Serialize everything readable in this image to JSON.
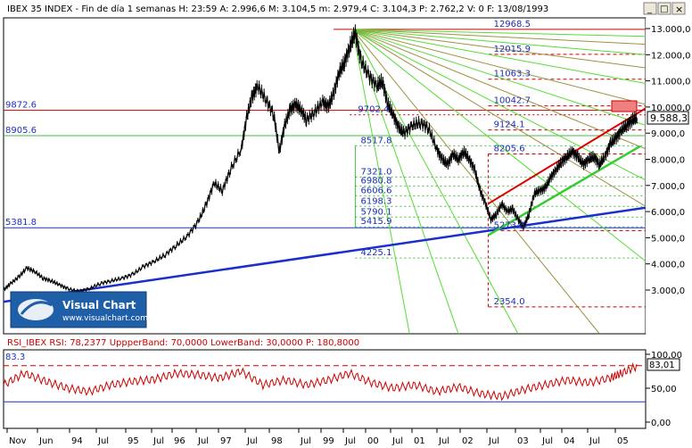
{
  "header": {
    "title": "IBEX 35 INDEX - Fin de día 1 semanas H: 23:59  A: 2.996,6  M: 3.104,5  m: 2.979,4  C: 3.104,3  P: 2.762,2  V: 0  F: 13/08/1993"
  },
  "window_controls": {
    "minimize": "_",
    "maximize": "□",
    "close": "×"
  },
  "logo": {
    "name": "Visual Chart",
    "url": "www.visualchart.com"
  },
  "colors": {
    "price": "#000000",
    "rsi": "#cc0000",
    "support_trend": "#1a2fcc",
    "channel_top": "#e00000",
    "channel_bottom": "#33cc33",
    "fan_green": "#55dd33",
    "fan_olive": "#a09040",
    "hline_red": "#cc0000",
    "hline_green": "#44bb44",
    "hline_blue": "#2030c0"
  },
  "chart_data": [
    {
      "type": "line",
      "title": "IBEX 35 INDEX",
      "x_ticks": [
        "Nov",
        "Jun",
        "94",
        "Jul",
        "95",
        "Jul",
        "96",
        "Jul",
        "97",
        "Jul",
        "98",
        "Jul",
        "99",
        "Jul",
        "00",
        "Jul",
        "01",
        "Jul",
        "02",
        "Jul",
        "03",
        "Jul",
        "04",
        "Jul",
        "05"
      ],
      "y_ticks": [
        "3.000,0",
        "4.000,0",
        "5.000,0",
        "6.000,0",
        "7.000,0",
        "8.000,0",
        "9.000,0",
        "10.000,0",
        "11.000,0",
        "12.000,0",
        "13.000,0"
      ],
      "ylim": [
        2000,
        13400
      ],
      "last_price_label": "9.588,3",
      "last_price": 9588.3,
      "series": [
        {
          "values_key": "price",
          "x": [
            1993.62,
            1993.75,
            1993.9,
            1994.05,
            1994.2,
            1994.35,
            1994.5,
            1994.65,
            1994.8,
            1995.0,
            1995.2,
            1995.4,
            1995.6,
            1995.8,
            1996.0,
            1996.2,
            1996.4,
            1996.6,
            1996.8,
            1997.0,
            1997.2,
            1997.35,
            1997.5,
            1997.65,
            1997.8,
            1998.0,
            1998.1,
            1998.2,
            1998.3,
            1998.45,
            1998.6,
            1998.7,
            1998.8,
            1998.9,
            1999.0,
            1999.1,
            1999.2,
            1999.35,
            1999.5,
            1999.6,
            1999.7,
            1999.8,
            1999.9,
            2000.0,
            2000.1,
            2000.2,
            2000.35,
            2000.5,
            2000.6,
            2000.7,
            2000.8,
            2000.9,
            2001.0,
            2001.15,
            2001.3,
            2001.45,
            2001.6,
            2001.7,
            2001.8,
            2001.9,
            2002.0,
            2002.1,
            2002.2,
            2002.3,
            2002.4,
            2002.5,
            2002.6,
            2002.7,
            2002.8,
            2002.9,
            2003.0,
            2003.1,
            2003.2,
            2003.3,
            2003.4,
            2003.5,
            2003.6,
            2003.7,
            2003.8,
            2003.9,
            2004.0,
            2004.1,
            2004.2,
            2004.3,
            2004.4,
            2004.5,
            2004.6,
            2004.7,
            2004.8,
            2004.9,
            2005.0,
            2005.1,
            2005.2,
            2005.3
          ],
          "y": [
            3000,
            3250,
            3500,
            3850,
            3700,
            3450,
            3350,
            3200,
            3050,
            2950,
            3050,
            3250,
            3350,
            3450,
            3600,
            3900,
            4100,
            4350,
            4700,
            5050,
            5600,
            6250,
            7100,
            6800,
            7600,
            8400,
            9600,
            10400,
            10800,
            10300,
            9700,
            8300,
            9300,
            9900,
            10100,
            9900,
            9500,
            9800,
            10200,
            10000,
            10500,
            11300,
            11700,
            12300,
            12850,
            11800,
            11200,
            10800,
            11000,
            10100,
            9700,
            9200,
            9000,
            9300,
            9400,
            9200,
            8400,
            8000,
            7800,
            8200,
            8000,
            8300,
            8000,
            7600,
            6800,
            6300,
            5700,
            5900,
            6300,
            6000,
            6100,
            5700,
            5400,
            5900,
            6700,
            6800,
            6900,
            7300,
            7600,
            7900,
            8100,
            8300,
            8100,
            7800,
            8000,
            8100,
            7800,
            8100,
            8600,
            8800,
            9100,
            9300,
            9500,
            9588
          ]
        }
      ],
      "annotations": [
        {
          "text": "12968.5",
          "value": 12968.5
        },
        {
          "text": "12015.9",
          "value": 12015.9
        },
        {
          "text": "11063.3",
          "value": 11063.3
        },
        {
          "text": "10042.7",
          "value": 10042.7
        },
        {
          "text": "9872.6",
          "value": 9872.6
        },
        {
          "text": "9702.4",
          "value": 9702.4
        },
        {
          "text": "9124.1",
          "value": 9124.1
        },
        {
          "text": "8905.6",
          "value": 8905.6
        },
        {
          "text": "8517.8",
          "value": 8517.8
        },
        {
          "text": "8205.6",
          "value": 8205.6
        },
        {
          "text": "7321.0",
          "value": 7321.0
        },
        {
          "text": "6980.8",
          "value": 6980.8
        },
        {
          "text": "6606.6",
          "value": 6606.6
        },
        {
          "text": "6198.3",
          "value": 6198.3
        },
        {
          "text": "5790.1",
          "value": 5790.1
        },
        {
          "text": "5415.9",
          "value": 5415.9
        },
        {
          "text": "5381.8",
          "value": 5381.8
        },
        {
          "text": "5273.8",
          "value": 5273.8
        },
        {
          "text": "4225.1",
          "value": 4225.1
        },
        {
          "text": "2354.0",
          "value": 2354.0
        }
      ]
    },
    {
      "type": "line",
      "title": "RSI_IBEX RSI: 78,2377  UppperBand: 70,0000  LowerBand: 30,0000  P: 180,8000",
      "y_ticks": [
        "0,00",
        "50,00",
        "100,00"
      ],
      "ylim": [
        0,
        100
      ],
      "left_label": "83.3",
      "last_value_label": "83,01",
      "upper_band": 70,
      "lower_band": 30,
      "series": [
        {
          "values_key": "rsi",
          "x": [
            1993.62,
            1994.0,
            1994.4,
            1994.8,
            1995.2,
            1995.6,
            1996.0,
            1996.4,
            1996.8,
            1997.2,
            1997.6,
            1998.0,
            1998.4,
            1998.8,
            1999.2,
            1999.6,
            2000.0,
            2000.4,
            2000.8,
            2001.2,
            2001.6,
            2002.0,
            2002.4,
            2002.8,
            2003.2,
            2003.6,
            2004.0,
            2004.4,
            2004.8,
            2005.0,
            2005.3
          ],
          "y": [
            55,
            72,
            60,
            50,
            45,
            55,
            60,
            63,
            72,
            70,
            65,
            75,
            55,
            62,
            55,
            62,
            72,
            58,
            50,
            55,
            45,
            52,
            42,
            38,
            48,
            55,
            62,
            58,
            65,
            72,
            83
          ]
        }
      ]
    }
  ]
}
